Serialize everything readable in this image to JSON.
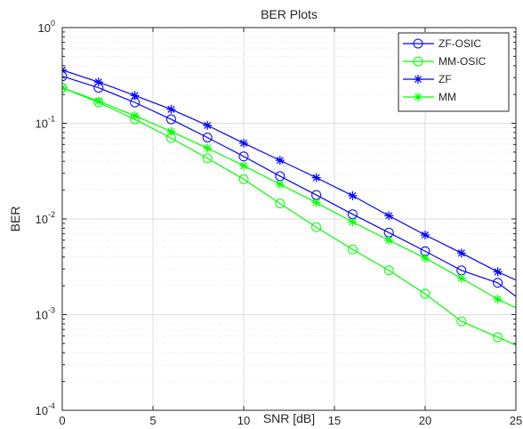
{
  "chart_data": {
    "type": "line",
    "title": "BER Plots",
    "xlabel": "SNR [dB]",
    "ylabel": "BER",
    "xlim": [
      0,
      25
    ],
    "ylim": [
      0.0001,
      1
    ],
    "yscale": "log",
    "grid": true,
    "legend_position": "top-right",
    "x_ticks": [
      0,
      5,
      10,
      15,
      20,
      25
    ],
    "x_tick_labels": [
      "0",
      "5",
      "10",
      "15",
      "20",
      "25"
    ],
    "y_ticks": [
      {
        "value": 1,
        "base": "10",
        "exp": "0"
      },
      {
        "value": 0.1,
        "base": "10",
        "exp": "-1"
      },
      {
        "value": 0.01,
        "base": "10",
        "exp": "-2"
      },
      {
        "value": 0.001,
        "base": "10",
        "exp": "-3"
      },
      {
        "value": 0.0001,
        "base": "10",
        "exp": "-4"
      }
    ],
    "x": [
      0,
      2,
      4,
      6,
      8,
      10,
      12,
      14,
      16,
      18,
      20,
      22,
      24,
      25
    ],
    "series": [
      {
        "name": "ZF-OSIC",
        "color": "#0000ff",
        "marker": "circle",
        "values": [
          0.31,
          0.235,
          0.165,
          0.11,
          0.071,
          0.045,
          0.028,
          0.0178,
          0.0112,
          0.0072,
          0.0046,
          0.0029,
          0.00215,
          0.00155
        ]
      },
      {
        "name": "MM-OSIC",
        "color": "#00ff00",
        "marker": "circle",
        "values": [
          0.235,
          0.165,
          0.11,
          0.07,
          0.043,
          0.026,
          0.0145,
          0.0082,
          0.0048,
          0.0029,
          0.00165,
          0.00085,
          0.00058,
          0.00048
        ]
      },
      {
        "name": "ZF",
        "color": "#0000ff",
        "marker": "star",
        "values": [
          0.36,
          0.27,
          0.195,
          0.14,
          0.095,
          0.062,
          0.041,
          0.027,
          0.0175,
          0.0108,
          0.0068,
          0.0044,
          0.0028,
          0.0023
        ]
      },
      {
        "name": "MM",
        "color": "#00ff00",
        "marker": "star",
        "values": [
          0.235,
          0.17,
          0.12,
          0.082,
          0.055,
          0.036,
          0.023,
          0.0148,
          0.0093,
          0.006,
          0.0039,
          0.0024,
          0.00145,
          0.00118
        ]
      }
    ]
  }
}
